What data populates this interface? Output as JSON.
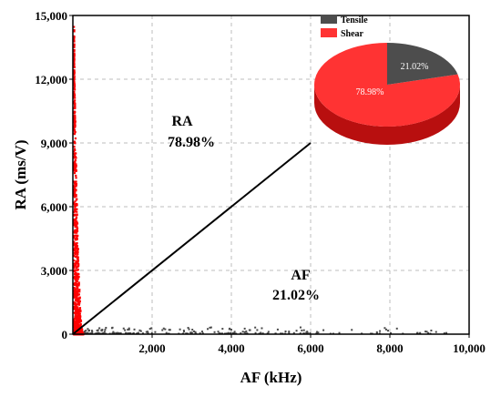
{
  "chart_data": [
    {
      "type": "scatter",
      "xlabel": "AF (kHz)",
      "ylabel": "RA (ms/V)",
      "xlim": [
        0,
        10000
      ],
      "ylim": [
        0,
        15000
      ],
      "x_ticks": [
        "2,000",
        "4,000",
        "6,000",
        "8,000",
        "10,000"
      ],
      "y_ticks": [
        "0",
        "3,000",
        "6,000",
        "9,000",
        "12,000",
        "15,000"
      ],
      "grid": true,
      "divider_line": {
        "x": [
          0,
          6000
        ],
        "y": [
          0,
          9000
        ]
      },
      "annotations": [
        {
          "label": "RA",
          "value": "78.98%",
          "x": 4600,
          "y": 10000
        },
        {
          "label": "AF",
          "value": "21.02%",
          "x": 7000,
          "y": 3000
        }
      ],
      "series": [
        {
          "name": "Shear",
          "color": "#ff0000",
          "region": "above divider line (RA side)",
          "x_range": [
            0,
            450
          ],
          "y_range": [
            0,
            14500
          ]
        },
        {
          "name": "Tensile",
          "color": "#4a4a4a",
          "region": "below divider line (AF side)",
          "x_range": [
            0,
            9500
          ],
          "y_range": [
            0,
            300
          ]
        }
      ]
    },
    {
      "type": "pie",
      "legend_position": "top-left of pie",
      "slices": [
        {
          "name": "Tensile",
          "value": 21.02,
          "label": "21.02%",
          "color": "#4d4d4d"
        },
        {
          "name": "Shear",
          "value": 78.98,
          "label": "78.98%",
          "color": "#ff3333"
        }
      ]
    }
  ]
}
